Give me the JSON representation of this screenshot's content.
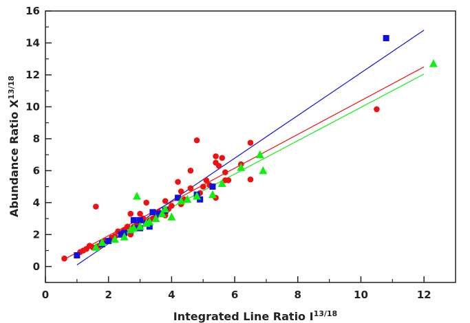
{
  "chart_data": {
    "type": "scatter",
    "xlabel": "Integrated Line Ratio I",
    "xlabel_sup": "13/18",
    "ylabel": "Abundance Ratio X",
    "ylabel_sup": "13/18",
    "xlim": [
      0,
      13
    ],
    "ylim": [
      -1,
      16
    ],
    "x_ticks": [
      0,
      2,
      4,
      6,
      8,
      10,
      12
    ],
    "y_ticks": [
      0,
      2,
      4,
      6,
      8,
      10,
      12,
      14,
      16
    ],
    "grid": false,
    "series": [
      {
        "marker": "circle",
        "color": "#ee1111",
        "points": [
          [
            0.6,
            0.5
          ],
          [
            1.1,
            0.9
          ],
          [
            1.2,
            1.0
          ],
          [
            1.3,
            1.1
          ],
          [
            1.4,
            1.3
          ],
          [
            1.5,
            1.2
          ],
          [
            1.6,
            3.75
          ],
          [
            1.7,
            1.3
          ],
          [
            1.8,
            1.5
          ],
          [
            1.9,
            1.6
          ],
          [
            2.0,
            1.6
          ],
          [
            2.1,
            1.8
          ],
          [
            2.2,
            1.9
          ],
          [
            2.3,
            2.2
          ],
          [
            2.4,
            2.1
          ],
          [
            2.5,
            2.3
          ],
          [
            2.6,
            2.5
          ],
          [
            2.7,
            2.0
          ],
          [
            2.7,
            2.1
          ],
          [
            2.7,
            3.3
          ],
          [
            2.8,
            2.5
          ],
          [
            2.9,
            2.6
          ],
          [
            3.0,
            2.4
          ],
          [
            3.0,
            3.3
          ],
          [
            3.1,
            3.0
          ],
          [
            3.2,
            2.8
          ],
          [
            3.2,
            4.0
          ],
          [
            3.3,
            2.9
          ],
          [
            3.4,
            3.0
          ],
          [
            3.5,
            3.1
          ],
          [
            3.6,
            3.4
          ],
          [
            3.7,
            3.3
          ],
          [
            3.8,
            3.2
          ],
          [
            3.8,
            4.1
          ],
          [
            3.9,
            3.6
          ],
          [
            4.0,
            3.8
          ],
          [
            4.2,
            5.3
          ],
          [
            4.3,
            4.7
          ],
          [
            4.3,
            3.9
          ],
          [
            4.4,
            4.2
          ],
          [
            4.6,
            4.9
          ],
          [
            4.6,
            6.0
          ],
          [
            4.8,
            7.9
          ],
          [
            4.9,
            4.6
          ],
          [
            5.0,
            5.0
          ],
          [
            5.1,
            5.4
          ],
          [
            5.2,
            5.1
          ],
          [
            5.4,
            4.3
          ],
          [
            5.4,
            6.9
          ],
          [
            5.4,
            6.5
          ],
          [
            5.5,
            6.3
          ],
          [
            5.6,
            6.8
          ],
          [
            5.7,
            5.9
          ],
          [
            5.7,
            5.4
          ],
          [
            5.8,
            5.4
          ],
          [
            6.2,
            6.4
          ],
          [
            6.5,
            7.75
          ],
          [
            6.5,
            5.45
          ],
          [
            10.5,
            9.85
          ]
        ],
        "fit": {
          "from": [
            0.6,
            0.45
          ],
          "to": [
            12.0,
            12.5
          ]
        }
      },
      {
        "marker": "square",
        "color": "#1111dd",
        "points": [
          [
            1.0,
            0.7
          ],
          [
            1.8,
            1.4
          ],
          [
            2.0,
            1.6
          ],
          [
            2.4,
            2.0
          ],
          [
            2.5,
            2.1
          ],
          [
            2.8,
            2.9
          ],
          [
            2.9,
            2.4
          ],
          [
            3.0,
            2.4
          ],
          [
            3.0,
            2.9
          ],
          [
            3.2,
            2.7
          ],
          [
            3.3,
            2.5
          ],
          [
            3.4,
            3.4
          ],
          [
            3.6,
            3.3
          ],
          [
            3.8,
            3.5
          ],
          [
            4.2,
            4.3
          ],
          [
            4.8,
            4.5
          ],
          [
            4.9,
            4.2
          ],
          [
            5.3,
            5.0
          ],
          [
            10.8,
            14.3
          ]
        ],
        "fit": {
          "from": [
            1.0,
            0.1
          ],
          "to": [
            12.0,
            14.8
          ]
        }
      },
      {
        "marker": "triangle",
        "color": "#11ee11",
        "points": [
          [
            1.6,
            1.2
          ],
          [
            1.8,
            1.5
          ],
          [
            2.2,
            1.7
          ],
          [
            2.5,
            1.85
          ],
          [
            2.7,
            2.3
          ],
          [
            2.8,
            2.4
          ],
          [
            2.9,
            4.4
          ],
          [
            3.0,
            2.5
          ],
          [
            3.2,
            2.7
          ],
          [
            3.3,
            2.8
          ],
          [
            3.5,
            3.0
          ],
          [
            3.7,
            3.3
          ],
          [
            3.8,
            3.6
          ],
          [
            4.0,
            3.1
          ],
          [
            4.3,
            4.1
          ],
          [
            4.5,
            4.2
          ],
          [
            4.8,
            4.4
          ],
          [
            5.3,
            4.5
          ],
          [
            5.6,
            5.2
          ],
          [
            6.2,
            6.2
          ],
          [
            6.8,
            7.0
          ],
          [
            6.9,
            6.0
          ],
          [
            12.3,
            12.7
          ]
        ],
        "fit": {
          "from": [
            1.6,
            1.2
          ],
          "to": [
            12.0,
            12.05
          ]
        }
      }
    ]
  }
}
